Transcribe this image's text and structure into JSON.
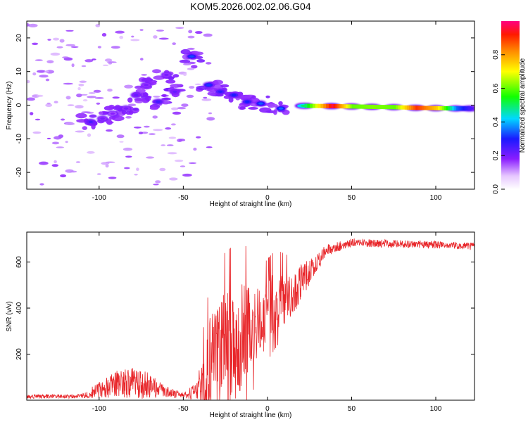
{
  "figure": {
    "title": "KOM5.2026.002.02.06.G04"
  },
  "chart_data": [
    {
      "type": "heatmap",
      "name": "spectrogram",
      "xlabel": "Height of straight line (km)",
      "ylabel": "Frequency (Hz)",
      "xlim": [
        -143,
        123
      ],
      "ylim": [
        -25,
        25
      ],
      "xticks": [
        -100,
        -50,
        0,
        50,
        100
      ],
      "yticks": [
        -20,
        -10,
        0,
        10,
        20
      ],
      "colorbar": {
        "label": "Normalized spectral amplitude",
        "range": [
          0,
          1
        ],
        "ticks": [
          0.0,
          0.2,
          0.4,
          0.6,
          0.8
        ],
        "tick_labels": [
          "0.0",
          "0.2",
          "0.4",
          "0.6",
          "0.8"
        ]
      },
      "features": [
        {
          "x": -105,
          "f": -5,
          "amp": 0.25
        },
        {
          "x": -98,
          "f": -4,
          "amp": 0.2
        },
        {
          "x": -92,
          "f": -2.5,
          "amp": 0.18
        },
        {
          "x": -84,
          "f": -1,
          "amp": 0.2
        },
        {
          "x": -78,
          "f": 3,
          "amp": 0.22
        },
        {
          "x": -72,
          "f": 6,
          "amp": 0.2
        },
        {
          "x": -65,
          "f": 1,
          "amp": 0.26
        },
        {
          "x": -60,
          "f": 9,
          "amp": 0.2
        },
        {
          "x": -55,
          "f": 4,
          "amp": 0.22
        },
        {
          "x": -45,
          "f": 14.5,
          "amp": 0.33
        },
        {
          "x": -35,
          "f": 6,
          "amp": 0.32
        },
        {
          "x": -28,
          "f": 4,
          "amp": 0.28
        },
        {
          "x": -20,
          "f": 3,
          "amp": 0.3
        },
        {
          "x": -12,
          "f": 1,
          "amp": 0.3
        },
        {
          "x": -4,
          "f": 0.5,
          "amp": 0.34
        },
        {
          "x": 8,
          "f": -1,
          "amp": 0.35
        },
        {
          "x": 22,
          "f": -0.2,
          "amp": 0.5
        },
        {
          "x": 38,
          "f": -0.3,
          "amp": 0.96
        },
        {
          "x": 50,
          "f": -0.4,
          "amp": 0.6
        },
        {
          "x": 62,
          "f": -0.5,
          "amp": 0.62
        },
        {
          "x": 75,
          "f": -0.6,
          "amp": 0.6
        },
        {
          "x": 88,
          "f": -0.8,
          "amp": 0.9
        },
        {
          "x": 100,
          "f": -0.9,
          "amp": 0.75
        },
        {
          "x": 112,
          "f": -1,
          "amp": 0.35
        },
        {
          "x": 120,
          "f": -1,
          "amp": 0.25
        }
      ]
    },
    {
      "type": "line",
      "name": "snr",
      "xlabel": "Height of straight line (km)",
      "ylabel": "SNR (v/v)",
      "xlim": [
        -143,
        123
      ],
      "ylim": [
        0,
        730
      ],
      "xticks": [
        -100,
        -50,
        0,
        50,
        100
      ],
      "yticks": [
        200,
        400,
        600
      ],
      "color": "#e8262a",
      "envelope": [
        {
          "x": -143,
          "base": 15,
          "noise": 8
        },
        {
          "x": -110,
          "base": 18,
          "noise": 10
        },
        {
          "x": -100,
          "base": 45,
          "noise": 35
        },
        {
          "x": -85,
          "base": 80,
          "noise": 70
        },
        {
          "x": -72,
          "base": 65,
          "noise": 60
        },
        {
          "x": -60,
          "base": 35,
          "noise": 25
        },
        {
          "x": -50,
          "base": 20,
          "noise": 12
        },
        {
          "x": -42,
          "base": 40,
          "noise": 40
        },
        {
          "x": -35,
          "base": 150,
          "noise": 200
        },
        {
          "x": -25,
          "base": 230,
          "noise": 260
        },
        {
          "x": -15,
          "base": 280,
          "noise": 260
        },
        {
          "x": -5,
          "base": 330,
          "noise": 150
        },
        {
          "x": 5,
          "base": 430,
          "noise": 140
        },
        {
          "x": 15,
          "base": 460,
          "noise": 100
        },
        {
          "x": 25,
          "base": 560,
          "noise": 60
        },
        {
          "x": 35,
          "base": 650,
          "noise": 25
        },
        {
          "x": 50,
          "base": 685,
          "noise": 18
        },
        {
          "x": 75,
          "base": 680,
          "noise": 18
        },
        {
          "x": 100,
          "base": 675,
          "noise": 16
        },
        {
          "x": 123,
          "base": 668,
          "noise": 16
        }
      ]
    }
  ]
}
